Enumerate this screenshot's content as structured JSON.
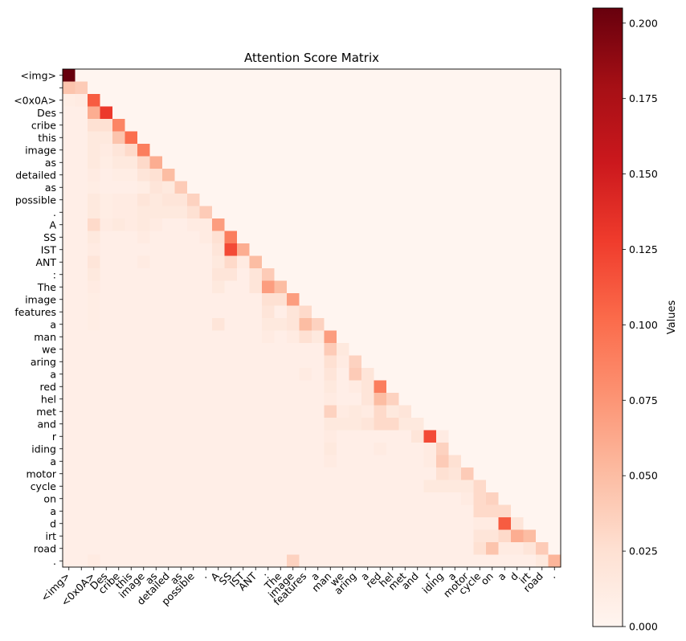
{
  "chart_data": {
    "type": "heatmap",
    "title": "Attention Score Matrix",
    "tokens": [
      "<img>",
      "",
      "<0x0A>",
      "Des",
      "cribe",
      "this",
      "image",
      "as",
      "detailed",
      "as",
      "possible",
      ".",
      "A",
      "SS",
      "IST",
      "ANT",
      ":",
      "The",
      "image",
      "features",
      "a",
      "man",
      "we",
      "aring",
      "a",
      "red",
      "hel",
      "met",
      "and",
      "r",
      "iding",
      "a",
      "motor",
      "cycle",
      "on",
      "a",
      "d",
      "irt",
      "road",
      "."
    ],
    "colormap": "Reds",
    "colors": {
      "low": "#fff5f0",
      "high": "#67000d"
    },
    "vmin": 0.0,
    "vmax": 0.205,
    "default_value": 0.008,
    "colorbar": {
      "label": "Values",
      "ticks": [
        "0.000",
        "0.025",
        "0.050",
        "0.075",
        "0.100",
        "0.125",
        "0.150",
        "0.175",
        "0.200"
      ],
      "tick_values": [
        0,
        0.025,
        0.05,
        0.075,
        0.1,
        0.125,
        0.15,
        0.175,
        0.2
      ]
    },
    "cells": [
      [
        0,
        0,
        0.205
      ],
      [
        1,
        0,
        0.045
      ],
      [
        1,
        1,
        0.04
      ],
      [
        2,
        0,
        0.01
      ],
      [
        2,
        1,
        0.012
      ],
      [
        2,
        2,
        0.11
      ],
      [
        3,
        1,
        0.008
      ],
      [
        3,
        2,
        0.06
      ],
      [
        3,
        3,
        0.13
      ],
      [
        4,
        2,
        0.025
      ],
      [
        4,
        3,
        0.025
      ],
      [
        4,
        4,
        0.085
      ],
      [
        5,
        2,
        0.015
      ],
      [
        5,
        3,
        0.015
      ],
      [
        5,
        4,
        0.045
      ],
      [
        5,
        5,
        0.1
      ],
      [
        6,
        2,
        0.015
      ],
      [
        6,
        3,
        0.012
      ],
      [
        6,
        4,
        0.02
      ],
      [
        6,
        5,
        0.03
      ],
      [
        6,
        6,
        0.09
      ],
      [
        7,
        2,
        0.015
      ],
      [
        7,
        3,
        0.01
      ],
      [
        7,
        4,
        0.015
      ],
      [
        7,
        5,
        0.015
      ],
      [
        7,
        6,
        0.03
      ],
      [
        7,
        7,
        0.06
      ],
      [
        8,
        2,
        0.012
      ],
      [
        8,
        4,
        0.01
      ],
      [
        8,
        5,
        0.01
      ],
      [
        8,
        6,
        0.02
      ],
      [
        8,
        7,
        0.025
      ],
      [
        8,
        8,
        0.05
      ],
      [
        9,
        2,
        0.01
      ],
      [
        9,
        6,
        0.01
      ],
      [
        9,
        7,
        0.02
      ],
      [
        9,
        8,
        0.015
      ],
      [
        9,
        9,
        0.04
      ],
      [
        10,
        2,
        0.015
      ],
      [
        10,
        3,
        0.01
      ],
      [
        10,
        4,
        0.012
      ],
      [
        10,
        5,
        0.012
      ],
      [
        10,
        6,
        0.02
      ],
      [
        10,
        7,
        0.015
      ],
      [
        10,
        8,
        0.02
      ],
      [
        10,
        9,
        0.02
      ],
      [
        10,
        10,
        0.035
      ],
      [
        11,
        2,
        0.015
      ],
      [
        11,
        3,
        0.01
      ],
      [
        11,
        4,
        0.012
      ],
      [
        11,
        5,
        0.012
      ],
      [
        11,
        6,
        0.015
      ],
      [
        11,
        7,
        0.015
      ],
      [
        11,
        8,
        0.015
      ],
      [
        11,
        9,
        0.015
      ],
      [
        11,
        10,
        0.025
      ],
      [
        11,
        11,
        0.04
      ],
      [
        12,
        2,
        0.03
      ],
      [
        12,
        3,
        0.012
      ],
      [
        12,
        4,
        0.015
      ],
      [
        12,
        5,
        0.012
      ],
      [
        12,
        6,
        0.015
      ],
      [
        12,
        7,
        0.012
      ],
      [
        12,
        10,
        0.012
      ],
      [
        12,
        11,
        0.012
      ],
      [
        12,
        12,
        0.07
      ],
      [
        13,
        2,
        0.015
      ],
      [
        13,
        6,
        0.012
      ],
      [
        13,
        11,
        0.012
      ],
      [
        13,
        12,
        0.025
      ],
      [
        13,
        13,
        0.09
      ],
      [
        14,
        2,
        0.012
      ],
      [
        14,
        12,
        0.02
      ],
      [
        14,
        13,
        0.12
      ],
      [
        14,
        14,
        0.06
      ],
      [
        15,
        2,
        0.02
      ],
      [
        15,
        6,
        0.012
      ],
      [
        15,
        12,
        0.015
      ],
      [
        15,
        13,
        0.03
      ],
      [
        15,
        14,
        0.012
      ],
      [
        15,
        15,
        0.05
      ],
      [
        16,
        2,
        0.015
      ],
      [
        16,
        12,
        0.02
      ],
      [
        16,
        13,
        0.02
      ],
      [
        16,
        15,
        0.02
      ],
      [
        16,
        16,
        0.04
      ],
      [
        17,
        2,
        0.012
      ],
      [
        17,
        12,
        0.015
      ],
      [
        17,
        15,
        0.02
      ],
      [
        17,
        16,
        0.07
      ],
      [
        17,
        17,
        0.05
      ],
      [
        18,
        2,
        0.01
      ],
      [
        18,
        16,
        0.025
      ],
      [
        18,
        17,
        0.025
      ],
      [
        18,
        18,
        0.07
      ],
      [
        19,
        2,
        0.01
      ],
      [
        19,
        16,
        0.02
      ],
      [
        19,
        18,
        0.02
      ],
      [
        19,
        19,
        0.03
      ],
      [
        20,
        2,
        0.01
      ],
      [
        20,
        12,
        0.02
      ],
      [
        20,
        16,
        0.015
      ],
      [
        20,
        17,
        0.015
      ],
      [
        20,
        18,
        0.02
      ],
      [
        20,
        19,
        0.05
      ],
      [
        20,
        20,
        0.035
      ],
      [
        21,
        16,
        0.012
      ],
      [
        21,
        18,
        0.012
      ],
      [
        21,
        19,
        0.025
      ],
      [
        21,
        20,
        0.015
      ],
      [
        21,
        21,
        0.07
      ],
      [
        22,
        21,
        0.04
      ],
      [
        22,
        22,
        0.015
      ],
      [
        23,
        21,
        0.025
      ],
      [
        23,
        22,
        0.012
      ],
      [
        23,
        23,
        0.035
      ],
      [
        24,
        19,
        0.012
      ],
      [
        24,
        21,
        0.02
      ],
      [
        24,
        23,
        0.04
      ],
      [
        24,
        24,
        0.02
      ],
      [
        25,
        21,
        0.015
      ],
      [
        25,
        23,
        0.012
      ],
      [
        25,
        24,
        0.02
      ],
      [
        25,
        25,
        0.09
      ],
      [
        26,
        21,
        0.012
      ],
      [
        26,
        24,
        0.02
      ],
      [
        26,
        25,
        0.05
      ],
      [
        26,
        26,
        0.035
      ],
      [
        27,
        21,
        0.035
      ],
      [
        27,
        22,
        0.012
      ],
      [
        27,
        23,
        0.015
      ],
      [
        27,
        24,
        0.012
      ],
      [
        27,
        25,
        0.03
      ],
      [
        27,
        26,
        0.015
      ],
      [
        27,
        27,
        0.02
      ],
      [
        28,
        21,
        0.015
      ],
      [
        28,
        22,
        0.015
      ],
      [
        28,
        23,
        0.015
      ],
      [
        28,
        24,
        0.02
      ],
      [
        28,
        25,
        0.03
      ],
      [
        28,
        26,
        0.03
      ],
      [
        28,
        27,
        0.015
      ],
      [
        28,
        28,
        0.015
      ],
      [
        29,
        21,
        0.012
      ],
      [
        29,
        28,
        0.02
      ],
      [
        29,
        29,
        0.12
      ],
      [
        29,
        30,
        0.012
      ],
      [
        30,
        21,
        0.015
      ],
      [
        30,
        25,
        0.012
      ],
      [
        30,
        29,
        0.012
      ],
      [
        30,
        30,
        0.035
      ],
      [
        31,
        21,
        0.012
      ],
      [
        31,
        29,
        0.012
      ],
      [
        31,
        30,
        0.04
      ],
      [
        31,
        31,
        0.025
      ],
      [
        32,
        30,
        0.025
      ],
      [
        32,
        31,
        0.02
      ],
      [
        32,
        32,
        0.04
      ],
      [
        33,
        29,
        0.015
      ],
      [
        33,
        30,
        0.015
      ],
      [
        33,
        31,
        0.015
      ],
      [
        33,
        32,
        0.015
      ],
      [
        33,
        33,
        0.03
      ],
      [
        34,
        32,
        0.012
      ],
      [
        34,
        33,
        0.03
      ],
      [
        34,
        34,
        0.035
      ],
      [
        35,
        33,
        0.03
      ],
      [
        35,
        34,
        0.03
      ],
      [
        35,
        35,
        0.03
      ],
      [
        36,
        33,
        0.012
      ],
      [
        36,
        34,
        0.012
      ],
      [
        36,
        35,
        0.11
      ],
      [
        36,
        36,
        0.02
      ],
      [
        37,
        33,
        0.02
      ],
      [
        37,
        34,
        0.02
      ],
      [
        37,
        35,
        0.03
      ],
      [
        37,
        36,
        0.06
      ],
      [
        37,
        37,
        0.05
      ],
      [
        38,
        33,
        0.025
      ],
      [
        38,
        34,
        0.045
      ],
      [
        38,
        35,
        0.012
      ],
      [
        38,
        36,
        0.012
      ],
      [
        38,
        37,
        0.02
      ],
      [
        38,
        38,
        0.04
      ],
      [
        39,
        2,
        0.012
      ],
      [
        39,
        18,
        0.035
      ],
      [
        39,
        38,
        0.015
      ],
      [
        39,
        39,
        0.055
      ]
    ]
  }
}
